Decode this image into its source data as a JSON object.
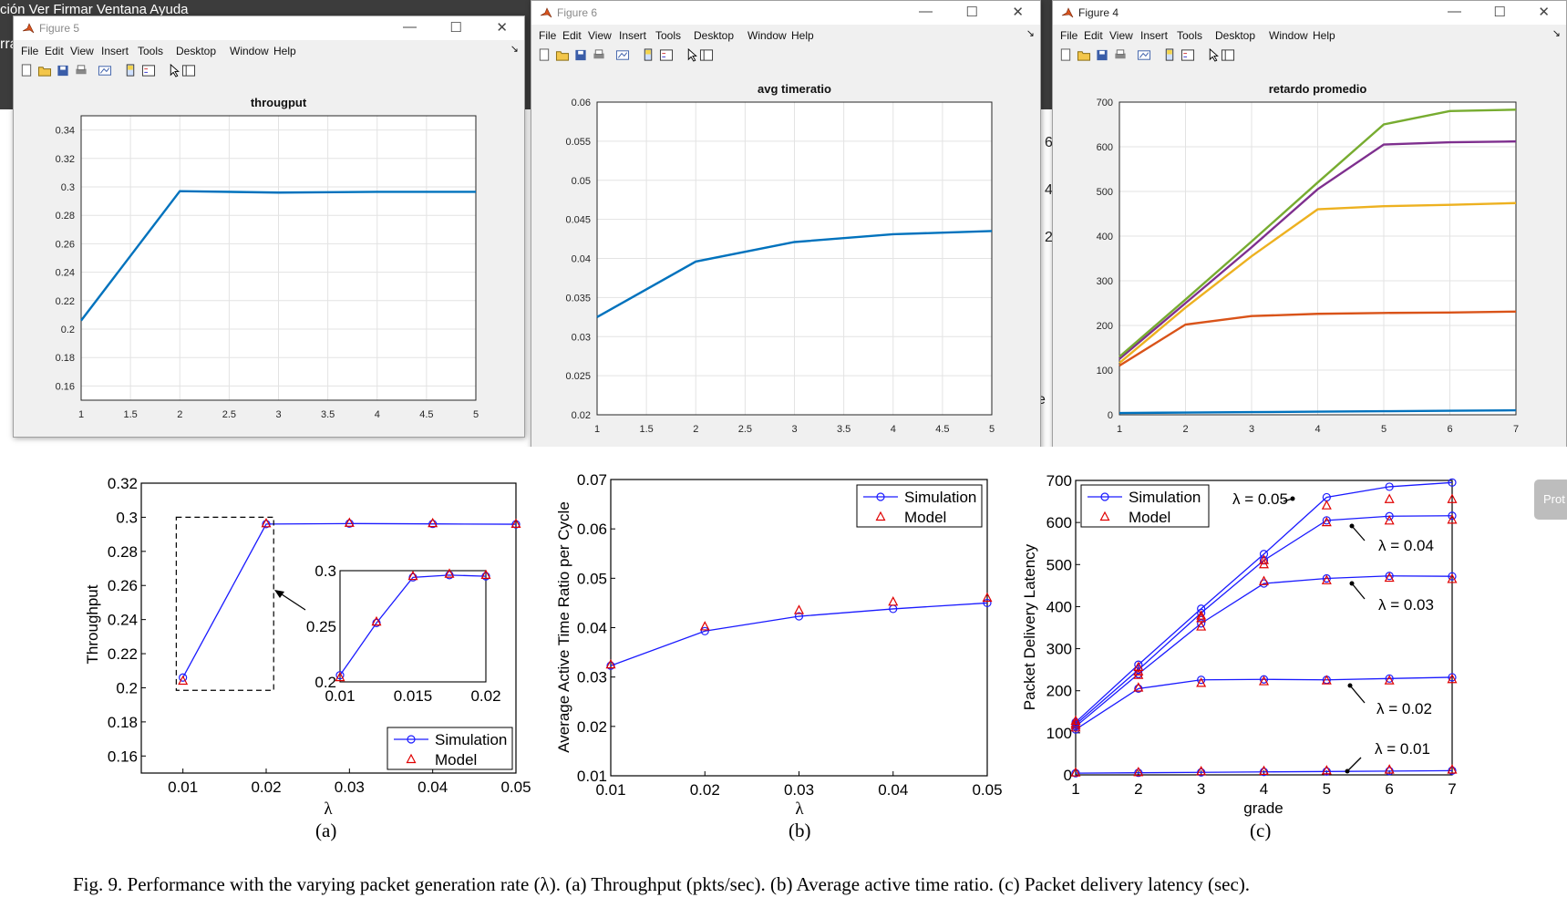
{
  "background": {
    "menu": "ción  Ver   Firmar   Ventana   Ayuda",
    "strip_letters": [
      "rra",
      "6",
      "4",
      "2",
      "e"
    ],
    "side_button": "Prot"
  },
  "windows": [
    {
      "title": "Figure 5",
      "active": false,
      "menu": [
        "File",
        "Edit",
        "View",
        "Insert",
        "Tools",
        "Desktop",
        "Window",
        "Help"
      ],
      "chart_data": {
        "type": "line",
        "title": "througput",
        "x": [
          1,
          2,
          3,
          4,
          5
        ],
        "series": [
          {
            "values": [
              0.206,
              0.297,
              0.296,
              0.2965,
              0.2965
            ],
            "color": "#0072bd"
          }
        ],
        "xlim": [
          1,
          5
        ],
        "ylim": [
          0.15,
          0.35
        ],
        "xticks": [
          "1",
          "1.5",
          "2",
          "2.5",
          "3",
          "3.5",
          "4",
          "4.5",
          "5"
        ],
        "yticks": [
          "0.16",
          "0.18",
          "0.2",
          "0.22",
          "0.24",
          "0.26",
          "0.28",
          "0.3",
          "0.32",
          "0.34"
        ],
        "grid": true
      }
    },
    {
      "title": "Figure 6",
      "active": false,
      "menu": [
        "File",
        "Edit",
        "View",
        "Insert",
        "Tools",
        "Desktop",
        "Window",
        "Help"
      ],
      "chart_data": {
        "type": "line",
        "title": "avg timeratio",
        "x": [
          1,
          2,
          3,
          4,
          5
        ],
        "series": [
          {
            "values": [
              0.0325,
              0.0396,
              0.0421,
              0.0431,
              0.0435
            ],
            "color": "#0072bd"
          }
        ],
        "xlim": [
          1,
          5
        ],
        "ylim": [
          0.02,
          0.06
        ],
        "xticks": [
          "1",
          "1.5",
          "2",
          "2.5",
          "3",
          "3.5",
          "4",
          "4.5",
          "5"
        ],
        "yticks": [
          "0.02",
          "0.025",
          "0.03",
          "0.035",
          "0.04",
          "0.045",
          "0.05",
          "0.055",
          "0.06"
        ],
        "grid": true
      }
    },
    {
      "title": "Figure 4",
      "active": true,
      "menu": [
        "File",
        "Edit",
        "View",
        "Insert",
        "Tools",
        "Desktop",
        "Window",
        "Help"
      ],
      "chart_data": {
        "type": "line",
        "title": "retardo promedio",
        "x": [
          1,
          2,
          3,
          4,
          5,
          6,
          7
        ],
        "series": [
          {
            "values": [
              4,
              5,
              6,
              7,
              8,
              9,
              10
            ],
            "color": "#0072bd"
          },
          {
            "values": [
              110,
              202,
              221,
              226,
              228,
              229,
              231
            ],
            "color": "#d95319"
          },
          {
            "values": [
              116,
              240,
              355,
              460,
              467,
              470,
              474
            ],
            "color": "#edb120"
          },
          {
            "values": [
              125,
              250,
              375,
              505,
              605,
              610,
              612
            ],
            "color": "#7e2f8e"
          },
          {
            "values": [
              130,
              258,
              388,
              520,
              650,
              680,
              683
            ],
            "color": "#77ac30"
          }
        ],
        "xlim": [
          1,
          7
        ],
        "ylim": [
          0,
          700
        ],
        "xticks": [
          "1",
          "2",
          "3",
          "4",
          "5",
          "6",
          "7"
        ],
        "yticks": [
          "0",
          "100",
          "200",
          "300",
          "400",
          "500",
          "600",
          "700"
        ],
        "grid": true
      }
    }
  ],
  "figure": {
    "panels": [
      {
        "label": "(a)",
        "chart_data": {
          "type": "line",
          "xlabel": "λ",
          "ylabel": "Throughput",
          "x": [
            0.01,
            0.02,
            0.03,
            0.04,
            0.05
          ],
          "series": [
            {
              "name": "Simulation",
              "values": [
                0.206,
                0.296,
                0.2963,
                0.2961,
                0.2959
              ]
            },
            {
              "name": "Model",
              "values": [
                0.204,
                0.2963,
                0.2966,
                0.2964,
                0.296
              ]
            }
          ],
          "xlim": [
            0.005,
            0.05
          ],
          "ylim": [
            0.15,
            0.32
          ],
          "xticks": [
            "0.01",
            "0.02",
            "0.03",
            "0.04",
            "0.05"
          ],
          "yticks": [
            "0.16",
            "0.18",
            "0.2",
            "0.22",
            "0.24",
            "0.26",
            "0.28",
            "0.3",
            "0.32"
          ],
          "legend": "bottom-right",
          "inset": {
            "x": [
              0.01,
              0.0125,
              0.015,
              0.0175,
              0.02
            ],
            "sim": [
              0.206,
              0.253,
              0.294,
              0.296,
              0.295
            ],
            "model": [
              0.204,
              0.254,
              0.295,
              0.297,
              0.296
            ],
            "xticks": [
              "0.01",
              "0.015",
              "0.02"
            ],
            "yticks": [
              "0.2",
              "0.25",
              "0.3"
            ],
            "xlim": [
              0.01,
              0.02
            ],
            "ylim": [
              0.2,
              0.3
            ]
          }
        }
      },
      {
        "label": "(b)",
        "chart_data": {
          "type": "line",
          "xlabel": "λ",
          "ylabel": "Average Active Time Ratio per Cycle",
          "x": [
            0.01,
            0.02,
            0.03,
            0.04,
            0.05
          ],
          "series": [
            {
              "name": "Simulation",
              "values": [
                0.0323,
                0.0393,
                0.0423,
                0.0438,
                0.045
              ]
            },
            {
              "name": "Model",
              "values": [
                0.0325,
                0.0402,
                0.0435,
                0.0452,
                0.046
              ]
            }
          ],
          "xlim": [
            0.01,
            0.05
          ],
          "ylim": [
            0.01,
            0.07
          ],
          "xticks": [
            "0.01",
            "0.02",
            "0.03",
            "0.04",
            "0.05"
          ],
          "yticks": [
            "0.01",
            "0.02",
            "0.03",
            "0.04",
            "0.05",
            "0.06",
            "0.07"
          ],
          "legend": "top-right"
        }
      },
      {
        "label": "(c)",
        "chart_data": {
          "type": "line",
          "xlabel": "grade",
          "ylabel": "Packet Delivery Latency",
          "x": [
            1,
            2,
            3,
            4,
            5,
            6,
            7
          ],
          "series": [
            {
              "name": "λ = 0.01",
              "values": [
                4,
                5,
                6,
                7,
                8,
                9,
                10
              ],
              "model": [
                5,
                6,
                8,
                9,
                10,
                12,
                12
              ]
            },
            {
              "name": "λ = 0.02",
              "values": [
                108,
                205,
                226,
                227,
                226,
                229,
                232
              ],
              "model": [
                112,
                207,
                218,
                222,
                224,
                224,
                227
              ]
            },
            {
              "name": "λ = 0.03",
              "values": [
                115,
                240,
                360,
                455,
                467,
                473,
                472
              ],
              "model": [
                118,
                237,
                352,
                460,
                462,
                468,
                465
              ]
            },
            {
              "name": "λ = 0.04",
              "values": [
                120,
                250,
                385,
                510,
                605,
                615,
                616
              ],
              "model": [
                122,
                245,
                372,
                500,
                600,
                604,
                606
              ]
            },
            {
              "name": "λ = 0.05",
              "values": [
                125,
                262,
                395,
                525,
                660,
                685,
                695
              ],
              "model": [
                128,
                256,
                378,
                510,
                640,
                655,
                655
              ]
            }
          ],
          "legend_names": [
            "Simulation",
            "Model"
          ],
          "xlim": [
            1,
            7
          ],
          "ylim": [
            0,
            700
          ],
          "xticks": [
            "1",
            "2",
            "3",
            "4",
            "5",
            "6",
            "7"
          ],
          "yticks": [
            "0",
            "100",
            "200",
            "300",
            "400",
            "500",
            "600",
            "700"
          ],
          "legend": "top-left"
        }
      }
    ],
    "caption": "Fig.  9.  Performance with the varying packet generation rate (λ). (a) Throughput (pkts/sec). (b) Average active time ratio. (c) Packet delivery latency (sec)."
  }
}
